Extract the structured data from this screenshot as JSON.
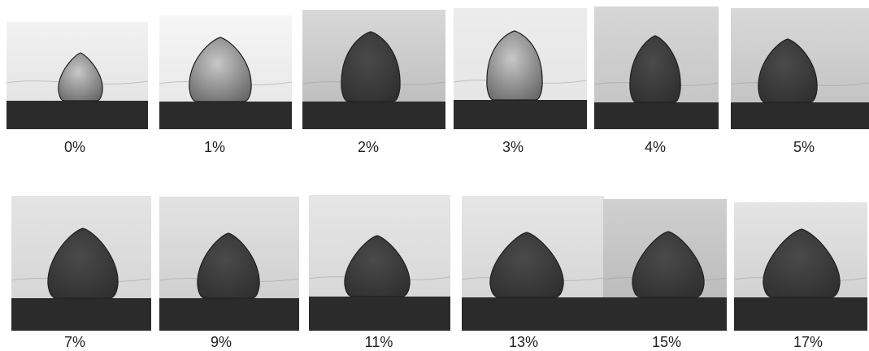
{
  "colors": {
    "background": "#ffffff",
    "caption_text": "#1e1e1e",
    "substrate": "#2b2b2b",
    "droplet": "#3a3a3a"
  },
  "panels": [
    {
      "label": "0%"
    },
    {
      "label": "1%"
    },
    {
      "label": "2%"
    },
    {
      "label": "3%"
    },
    {
      "label": "4%"
    },
    {
      "label": "5%"
    },
    {
      "label": "7%"
    },
    {
      "label": "9%"
    },
    {
      "label": "11%"
    },
    {
      "label": "13%"
    },
    {
      "label": "15%"
    },
    {
      "label": "17%"
    }
  ]
}
